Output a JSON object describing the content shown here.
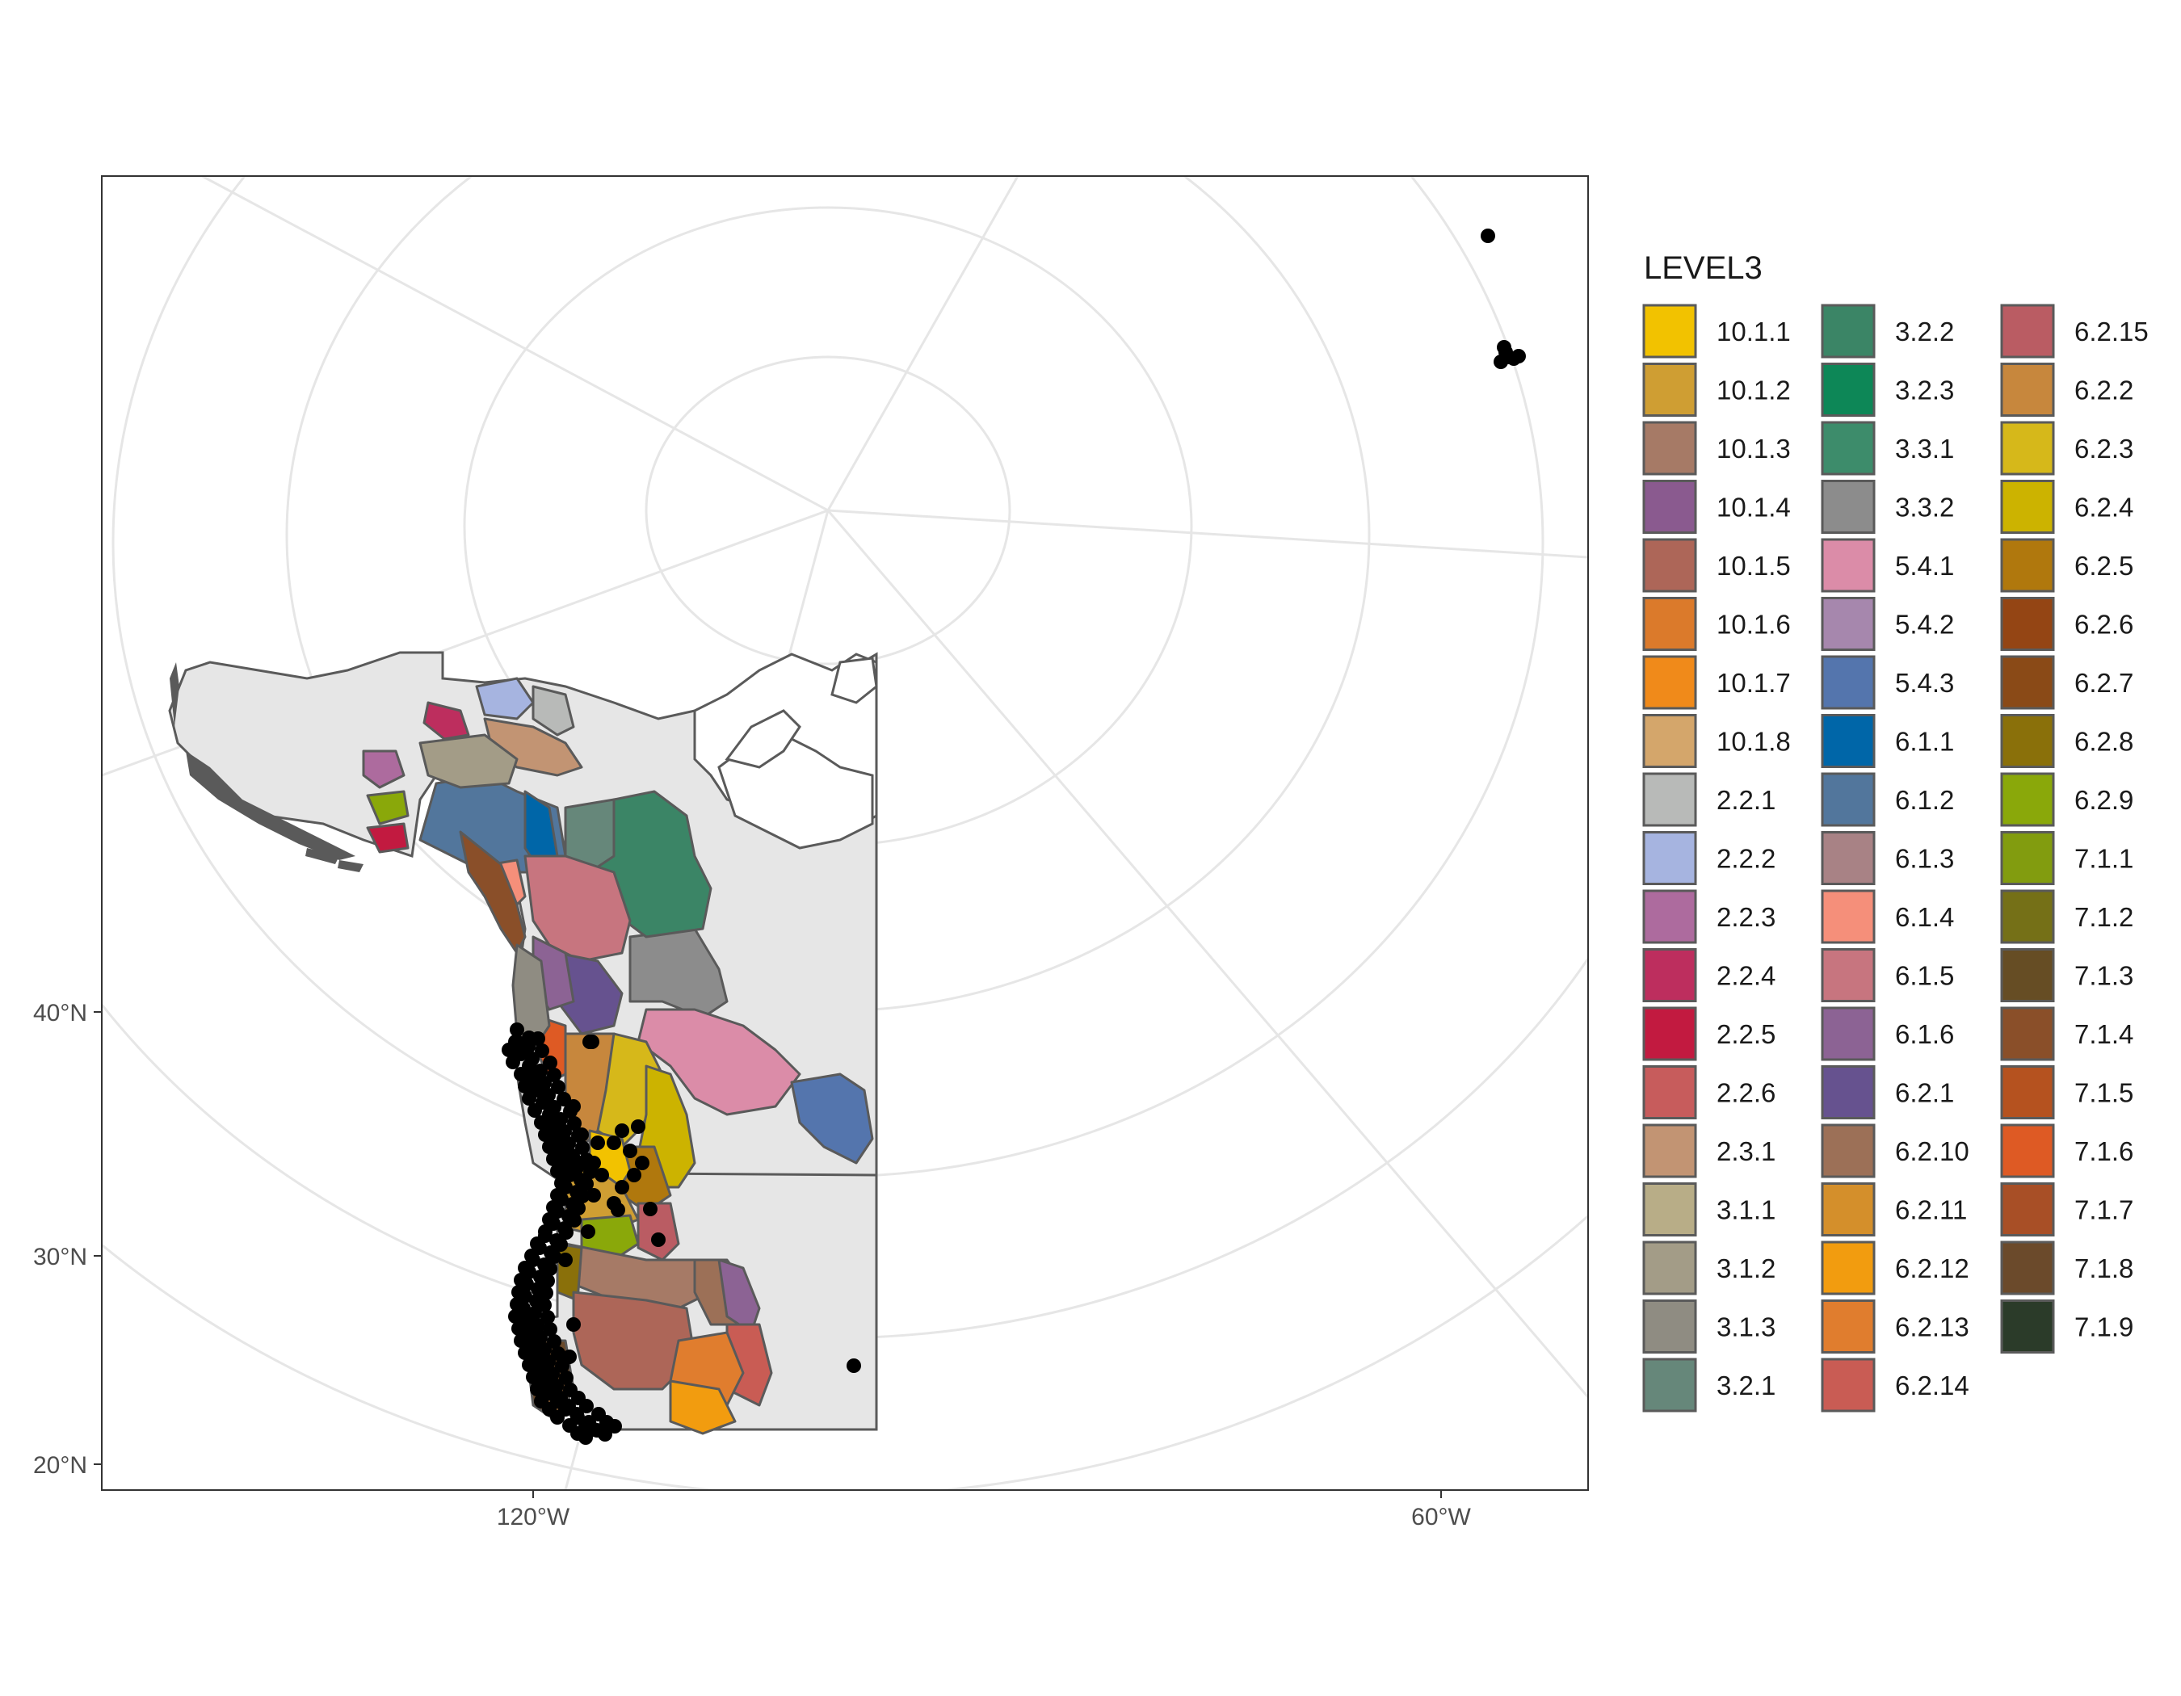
{
  "map": {
    "x_ticks": [
      {
        "label": "120°W",
        "value": -120
      },
      {
        "label": "60°W",
        "value": -60
      }
    ],
    "y_ticks": [
      {
        "label": "40°N",
        "value": 40
      },
      {
        "label": "30°N",
        "value": 30
      },
      {
        "label": "20°N",
        "value": 20
      }
    ],
    "gridlines": true,
    "background": "#ffffff",
    "points_color": "#000000"
  },
  "legend": {
    "title": "LEVEL3",
    "placement": "right",
    "entries": [
      {
        "label": "10.1.1",
        "color": "#F2C200"
      },
      {
        "label": "10.1.2",
        "color": "#CF9E33"
      },
      {
        "label": "10.1.3",
        "color": "#A67A66"
      },
      {
        "label": "10.1.4",
        "color": "#8A5A8F"
      },
      {
        "label": "10.1.5",
        "color": "#AD6658"
      },
      {
        "label": "10.1.6",
        "color": "#DB7A2B"
      },
      {
        "label": "10.1.7",
        "color": "#F08A1A"
      },
      {
        "label": "10.1.8",
        "color": "#D4A66B"
      },
      {
        "label": "2.2.1",
        "color": "#B8BAB8"
      },
      {
        "label": "2.2.2",
        "color": "#A6B4E0"
      },
      {
        "label": "2.2.3",
        "color": "#AD6B9E"
      },
      {
        "label": "2.2.4",
        "color": "#BD2E5E"
      },
      {
        "label": "2.2.5",
        "color": "#C21A40"
      },
      {
        "label": "2.2.6",
        "color": "#C75C5C"
      },
      {
        "label": "2.3.1",
        "color": "#C29473"
      },
      {
        "label": "3.1.1",
        "color": "#B8AD87"
      },
      {
        "label": "3.1.2",
        "color": "#A39C87"
      },
      {
        "label": "3.1.3",
        "color": "#8F8C82"
      },
      {
        "label": "3.2.1",
        "color": "#66877A"
      },
      {
        "label": "3.2.2",
        "color": "#3B8566"
      },
      {
        "label": "3.2.3",
        "color": "#0D8757"
      },
      {
        "label": "3.3.1",
        "color": "#3D8C6B"
      },
      {
        "label": "3.3.2",
        "color": "#8C8C8C"
      },
      {
        "label": "5.4.1",
        "color": "#DB8CA8"
      },
      {
        "label": "5.4.2",
        "color": "#A687AD"
      },
      {
        "label": "5.4.3",
        "color": "#5475AD"
      },
      {
        "label": "6.1.1",
        "color": "#0066A8"
      },
      {
        "label": "6.1.2",
        "color": "#52769C"
      },
      {
        "label": "6.1.3",
        "color": "#A88285"
      },
      {
        "label": "6.1.4",
        "color": "#F58F7A"
      },
      {
        "label": "6.1.5",
        "color": "#C7757F"
      },
      {
        "label": "6.1.6",
        "color": "#8C6394"
      },
      {
        "label": "6.2.1",
        "color": "#66528F"
      },
      {
        "label": "6.2.10",
        "color": "#9C7057"
      },
      {
        "label": "6.2.11",
        "color": "#D48F2B"
      },
      {
        "label": "6.2.12",
        "color": "#F29C0F"
      },
      {
        "label": "6.2.13",
        "color": "#E07D2E"
      },
      {
        "label": "6.2.14",
        "color": "#C95C54"
      },
      {
        "label": "6.2.15",
        "color": "#BA5C63"
      },
      {
        "label": "6.2.2",
        "color": "#C7873D"
      },
      {
        "label": "6.2.3",
        "color": "#D6B81A"
      },
      {
        "label": "6.2.4",
        "color": "#CCB300"
      },
      {
        "label": "6.2.5",
        "color": "#B0780D"
      },
      {
        "label": "6.2.6",
        "color": "#944514"
      },
      {
        "label": "6.2.7",
        "color": "#8A4A17"
      },
      {
        "label": "6.2.8",
        "color": "#8A700A"
      },
      {
        "label": "6.2.9",
        "color": "#8AA80A"
      },
      {
        "label": "7.1.1",
        "color": "#829C0F"
      },
      {
        "label": "7.1.2",
        "color": "#757017"
      },
      {
        "label": "7.1.3",
        "color": "#664D24"
      },
      {
        "label": "7.1.4",
        "color": "#8A4F29"
      },
      {
        "label": "7.1.5",
        "color": "#B5521F"
      },
      {
        "label": "7.1.6",
        "color": "#DE5A24"
      },
      {
        "label": "7.1.7",
        "color": "#A84F26"
      },
      {
        "label": "7.1.8",
        "color": "#6B4A2B"
      },
      {
        "label": "7.1.9",
        "color": "#2B3B29"
      }
    ]
  }
}
